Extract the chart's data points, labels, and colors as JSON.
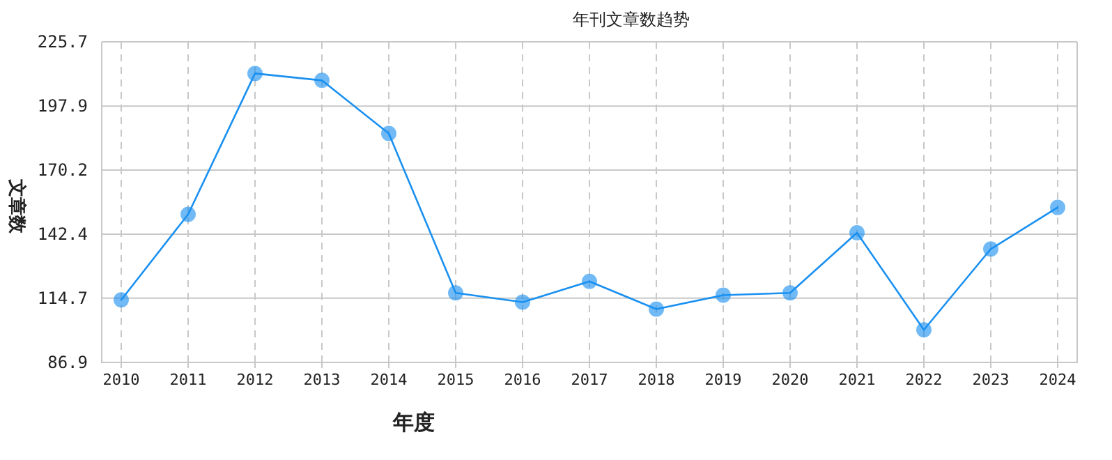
{
  "chart_data": {
    "type": "line",
    "title": "年刊文章数趋势",
    "xlabel": "年度",
    "ylabel": "文章数",
    "categories": [
      "2010",
      "2011",
      "2012",
      "2013",
      "2014",
      "2015",
      "2016",
      "2017",
      "2018",
      "2019",
      "2020",
      "2021",
      "2022",
      "2023",
      "2024"
    ],
    "series": [
      {
        "color": "#1a90f0",
        "values": [
          114,
          151,
          212,
          209,
          186,
          117,
          113,
          122,
          110,
          116,
          117,
          143,
          101,
          136,
          154
        ]
      }
    ],
    "ylim": [
      86.9,
      225.7
    ],
    "yticks": [
      86.9,
      114.7,
      142.4,
      170.2,
      197.9,
      225.7
    ],
    "grid": true,
    "marker": "circle",
    "line_style": "solid"
  }
}
